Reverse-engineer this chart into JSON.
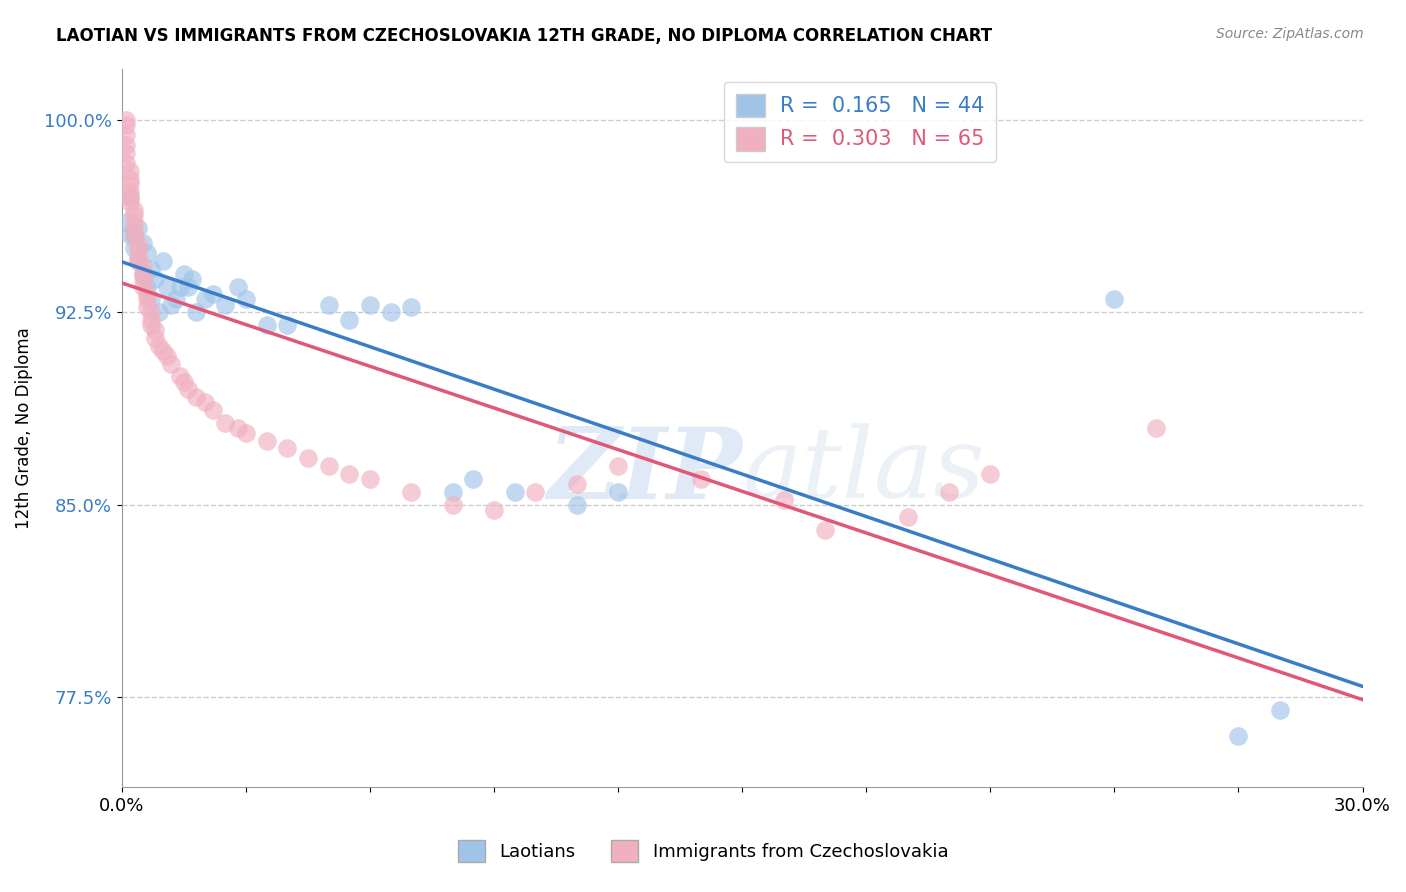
{
  "title": "LAOTIAN VS IMMIGRANTS FROM CZECHOSLOVAKIA 12TH GRADE, NO DIPLOMA CORRELATION CHART",
  "source_text": "Source: ZipAtlas.com",
  "ylabel": "12th Grade, No Diploma",
  "xlim": [
    0.0,
    0.3
  ],
  "ylim": [
    0.74,
    1.02
  ],
  "xticks": [
    0.0,
    0.03,
    0.06,
    0.09,
    0.12,
    0.15,
    0.18,
    0.21,
    0.24,
    0.27,
    0.3
  ],
  "yticks": [
    0.775,
    0.85,
    0.925,
    1.0
  ],
  "ytick_labels": [
    "77.5%",
    "85.0%",
    "92.5%",
    "100.0%"
  ],
  "legend_entries": [
    {
      "label_r": "R = ",
      "label_v": "0.165",
      "label_n": "   N = ",
      "label_nv": "44"
    },
    {
      "label_r": "R = ",
      "label_v": "0.303",
      "label_n": "   N = ",
      "label_nv": "65"
    }
  ],
  "blue_color": "#a0c4e8",
  "pink_color": "#f0b0c0",
  "blue_line_color": "#3a7cc7",
  "pink_line_color": "#e05878",
  "watermark_zip": "ZIP",
  "watermark_atlas": "atlas",
  "background_color": "#ffffff",
  "grid_color": "#cccccc",
  "blue_scatter": [
    [
      0.001,
      0.96
    ],
    [
      0.002,
      0.955
    ],
    [
      0.002,
      0.97
    ],
    [
      0.003,
      0.95
    ],
    [
      0.003,
      0.955
    ],
    [
      0.004,
      0.958
    ],
    [
      0.004,
      0.945
    ],
    [
      0.005,
      0.952
    ],
    [
      0.005,
      0.94
    ],
    [
      0.006,
      0.948
    ],
    [
      0.006,
      0.935
    ],
    [
      0.007,
      0.942
    ],
    [
      0.007,
      0.93
    ],
    [
      0.008,
      0.938
    ],
    [
      0.009,
      0.925
    ],
    [
      0.01,
      0.945
    ],
    [
      0.011,
      0.935
    ],
    [
      0.012,
      0.928
    ],
    [
      0.013,
      0.93
    ],
    [
      0.014,
      0.935
    ],
    [
      0.015,
      0.94
    ],
    [
      0.016,
      0.935
    ],
    [
      0.017,
      0.938
    ],
    [
      0.018,
      0.925
    ],
    [
      0.02,
      0.93
    ],
    [
      0.022,
      0.932
    ],
    [
      0.025,
      0.928
    ],
    [
      0.028,
      0.935
    ],
    [
      0.03,
      0.93
    ],
    [
      0.035,
      0.92
    ],
    [
      0.04,
      0.92
    ],
    [
      0.05,
      0.928
    ],
    [
      0.055,
      0.922
    ],
    [
      0.06,
      0.928
    ],
    [
      0.065,
      0.925
    ],
    [
      0.07,
      0.927
    ],
    [
      0.08,
      0.855
    ],
    [
      0.085,
      0.86
    ],
    [
      0.095,
      0.855
    ],
    [
      0.11,
      0.85
    ],
    [
      0.12,
      0.855
    ],
    [
      0.24,
      0.93
    ],
    [
      0.27,
      0.76
    ],
    [
      0.28,
      0.77
    ]
  ],
  "pink_scatter": [
    [
      0.001,
      1.0
    ],
    [
      0.001,
      0.998
    ],
    [
      0.001,
      0.994
    ],
    [
      0.001,
      0.99
    ],
    [
      0.001,
      0.987
    ],
    [
      0.001,
      0.983
    ],
    [
      0.002,
      0.98
    ],
    [
      0.002,
      0.977
    ],
    [
      0.002,
      0.975
    ],
    [
      0.002,
      0.972
    ],
    [
      0.002,
      0.97
    ],
    [
      0.002,
      0.968
    ],
    [
      0.003,
      0.965
    ],
    [
      0.003,
      0.963
    ],
    [
      0.003,
      0.96
    ],
    [
      0.003,
      0.958
    ],
    [
      0.003,
      0.955
    ],
    [
      0.004,
      0.952
    ],
    [
      0.004,
      0.95
    ],
    [
      0.004,
      0.947
    ],
    [
      0.004,
      0.945
    ],
    [
      0.005,
      0.943
    ],
    [
      0.005,
      0.94
    ],
    [
      0.005,
      0.938
    ],
    [
      0.005,
      0.935
    ],
    [
      0.006,
      0.932
    ],
    [
      0.006,
      0.93
    ],
    [
      0.006,
      0.927
    ],
    [
      0.007,
      0.925
    ],
    [
      0.007,
      0.922
    ],
    [
      0.007,
      0.92
    ],
    [
      0.008,
      0.918
    ],
    [
      0.008,
      0.915
    ],
    [
      0.009,
      0.912
    ],
    [
      0.01,
      0.91
    ],
    [
      0.011,
      0.908
    ],
    [
      0.012,
      0.905
    ],
    [
      0.014,
      0.9
    ],
    [
      0.015,
      0.898
    ],
    [
      0.016,
      0.895
    ],
    [
      0.018,
      0.892
    ],
    [
      0.02,
      0.89
    ],
    [
      0.022,
      0.887
    ],
    [
      0.025,
      0.882
    ],
    [
      0.028,
      0.88
    ],
    [
      0.03,
      0.878
    ],
    [
      0.035,
      0.875
    ],
    [
      0.04,
      0.872
    ],
    [
      0.045,
      0.868
    ],
    [
      0.05,
      0.865
    ],
    [
      0.055,
      0.862
    ],
    [
      0.06,
      0.86
    ],
    [
      0.07,
      0.855
    ],
    [
      0.08,
      0.85
    ],
    [
      0.09,
      0.848
    ],
    [
      0.1,
      0.855
    ],
    [
      0.11,
      0.858
    ],
    [
      0.12,
      0.865
    ],
    [
      0.14,
      0.86
    ],
    [
      0.16,
      0.852
    ],
    [
      0.17,
      0.84
    ],
    [
      0.19,
      0.845
    ],
    [
      0.2,
      0.855
    ],
    [
      0.21,
      0.862
    ],
    [
      0.25,
      0.88
    ]
  ]
}
